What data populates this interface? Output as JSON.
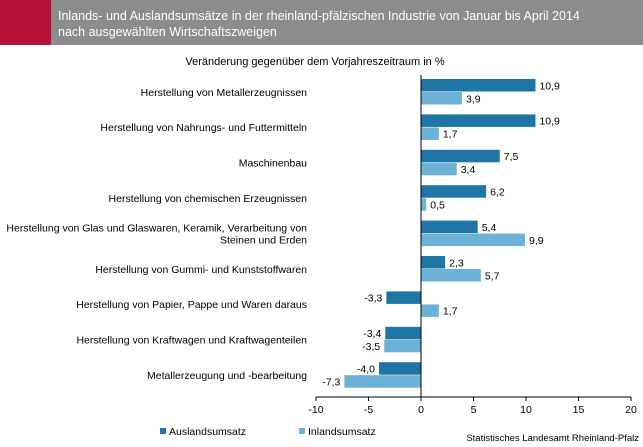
{
  "header": {
    "title_line1": "Inlands- und Auslandsumsätze in der rheinland-pfälzischen Industrie von Januar bis April 2014",
    "title_line2": "nach ausgewählten Wirtschaftszweigen"
  },
  "colors": {
    "header_bg": "#8c8c8c",
    "header_accent": "#b8123b",
    "auslandsumsatz": "#1f75a6",
    "inlandsumsatz": "#6bb2d6"
  },
  "source": "Statistisches Landesamt Rheinland-Pfalz",
  "chart_data": {
    "type": "bar",
    "orientation": "horizontal",
    "title": "Veränderung gegenüber dem Vorjahreszeitraum  in %",
    "categories": [
      [
        "Herstellung von Metallerzeugnissen"
      ],
      [
        "Herstellung von Nahrungs- und Futtermitteln"
      ],
      [
        "Maschinenbau"
      ],
      [
        "Herstellung von chemischen Erzeugnissen"
      ],
      [
        "Herstellung von Glas und Glaswaren, Keramik, Verarbeitung von",
        "Steinen und Erden"
      ],
      [
        "Herstellung von Gummi- und Kunststoffwaren"
      ],
      [
        "Herstellung von Papier, Pappe und Waren daraus"
      ],
      [
        "Herstellung von Kraftwagen und Kraftwagenteilen"
      ],
      [
        "Metallerzeugung und -bearbeitung"
      ]
    ],
    "series": [
      {
        "name": "Auslandsumsatz",
        "values": [
          10.9,
          10.9,
          7.5,
          6.2,
          5.4,
          2.3,
          -3.3,
          -3.4,
          -4.0
        ],
        "labels": [
          "10,9",
          "10,9",
          "7,5",
          "6,2",
          "5,4",
          "2,3",
          "-3,3",
          "-3,4",
          "-4,0"
        ]
      },
      {
        "name": "Inlandsumsatz",
        "values": [
          3.9,
          1.7,
          3.4,
          0.5,
          9.9,
          5.7,
          1.7,
          -3.5,
          -7.3
        ],
        "labels": [
          "3,9",
          "1,7",
          "3,4",
          "0,5",
          "9,9",
          "5,7",
          "1,7",
          "-3,5",
          "-7,3"
        ]
      }
    ],
    "xlim": [
      -10,
      20
    ],
    "xticks": [
      -10,
      -5,
      0,
      5,
      10,
      15,
      20
    ],
    "grid": false,
    "legend_position": "bottom-left"
  }
}
